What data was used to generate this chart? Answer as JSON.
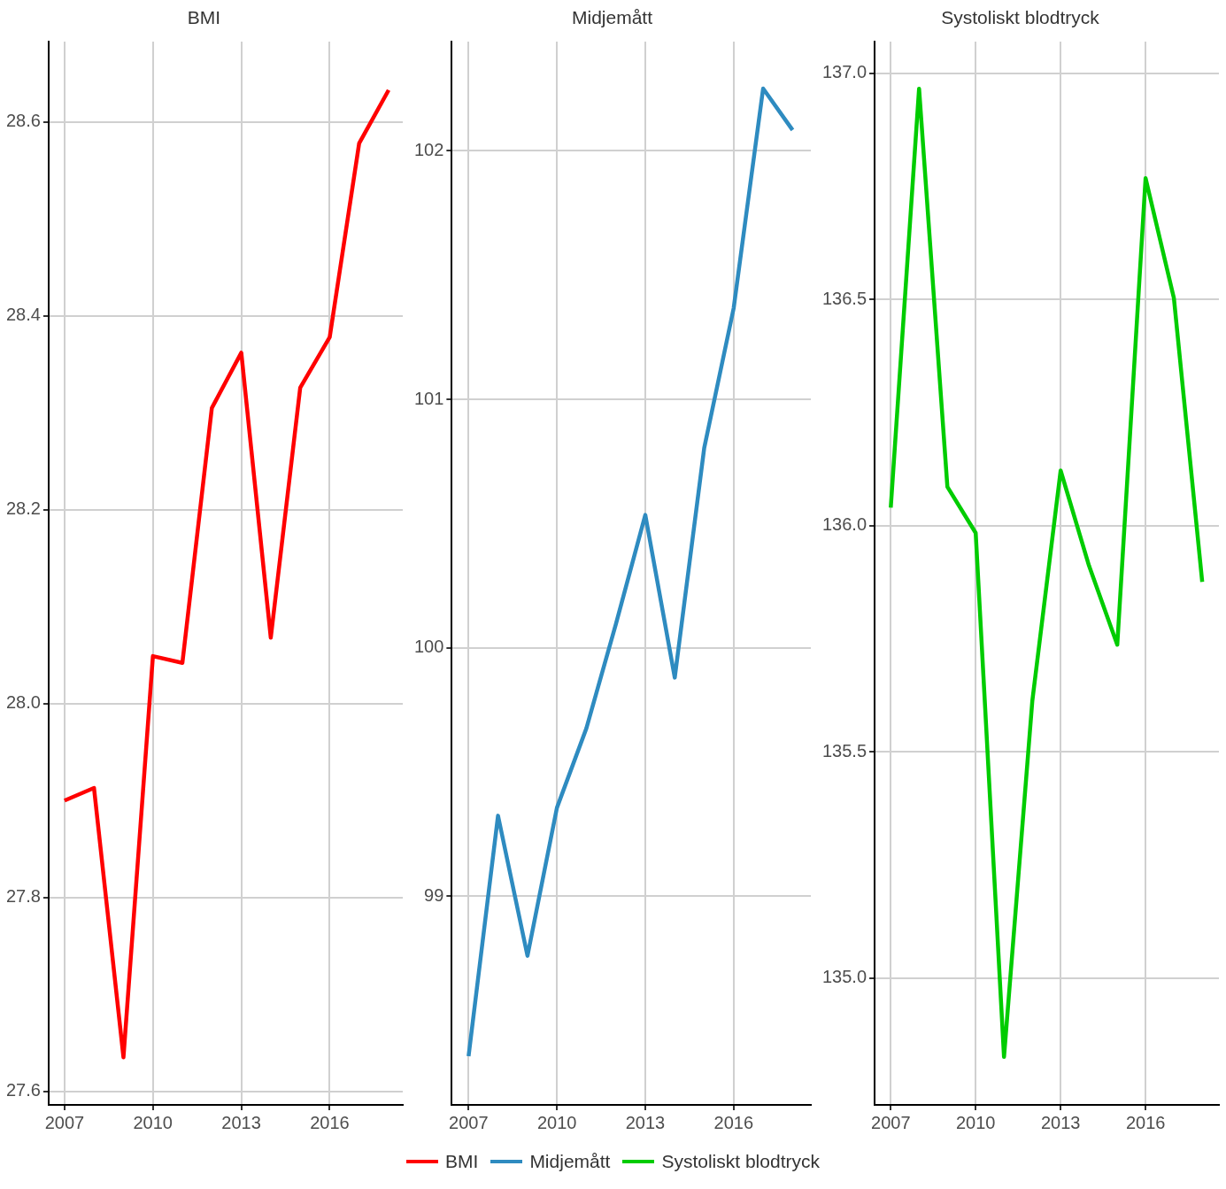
{
  "chart_data": [
    {
      "type": "line",
      "title": "BMI",
      "x": [
        2007,
        2008,
        2009,
        2010,
        2011,
        2012,
        2013,
        2014,
        2015,
        2016,
        2017,
        2018
      ],
      "series": [
        {
          "name": "BMI",
          "color": "#ff0000",
          "values": [
            27.9,
            27.913,
            27.635,
            28.049,
            28.042,
            28.305,
            28.362,
            28.068,
            28.326,
            28.378,
            28.578,
            28.633
          ]
        }
      ],
      "xlim": [
        2006.46,
        2018.48
      ],
      "xticks": [
        2007,
        2010,
        2013,
        2016
      ],
      "ylim": [
        27.586,
        28.683
      ],
      "yticks": [
        27.6,
        27.8,
        {
          "value": 28,
          "label": "28.0"
        },
        28.2,
        28.4,
        28.6
      ],
      "grid": true,
      "legend": "bottom"
    },
    {
      "type": "line",
      "title": "Midjemått",
      "x": [
        2007,
        2008,
        2009,
        2010,
        2011,
        2012,
        2013,
        2014,
        2015,
        2016,
        2017,
        2018
      ],
      "series": [
        {
          "name": "Midjemått",
          "color": "#2e8bc0",
          "values": [
            98.356,
            99.324,
            98.76,
            99.356,
            99.676,
            100.095,
            100.535,
            99.88,
            100.804,
            101.367,
            102.251,
            102.084
          ]
        }
      ],
      "xlim": [
        2006.43,
        2018.62
      ],
      "xticks": [
        2007,
        2010,
        2013,
        2016
      ],
      "ylim": [
        98.16,
        102.44
      ],
      "yticks": [
        99,
        100,
        101,
        102
      ],
      "grid": true,
      "legend": "bottom"
    },
    {
      "type": "line",
      "title": "Systoliskt blodtryck",
      "x": [
        2007,
        2008,
        2009,
        2010,
        2011,
        2012,
        2013,
        2014,
        2015,
        2016,
        2017,
        2018
      ],
      "series": [
        {
          "name": "Systoliskt blodtryck",
          "color": "#00cc00",
          "values": [
            136.04,
            136.966,
            136.086,
            135.984,
            134.826,
            135.613,
            136.122,
            135.912,
            135.737,
            136.768,
            136.503,
            135.876
          ]
        }
      ],
      "xlim": [
        2006.43,
        2018.59
      ],
      "xticks": [
        2007,
        2010,
        2013,
        2016
      ],
      "ylim": [
        134.72,
        137.07
      ],
      "yticks": [
        {
          "value": 135,
          "label": "135.0"
        },
        {
          "value": 135.5,
          "label": "135.5"
        },
        {
          "value": 136,
          "label": "136.0"
        },
        {
          "value": 136.5,
          "label": "136.5"
        },
        {
          "value": 137,
          "label": "137.0"
        }
      ],
      "grid": true,
      "legend": "bottom"
    }
  ]
}
